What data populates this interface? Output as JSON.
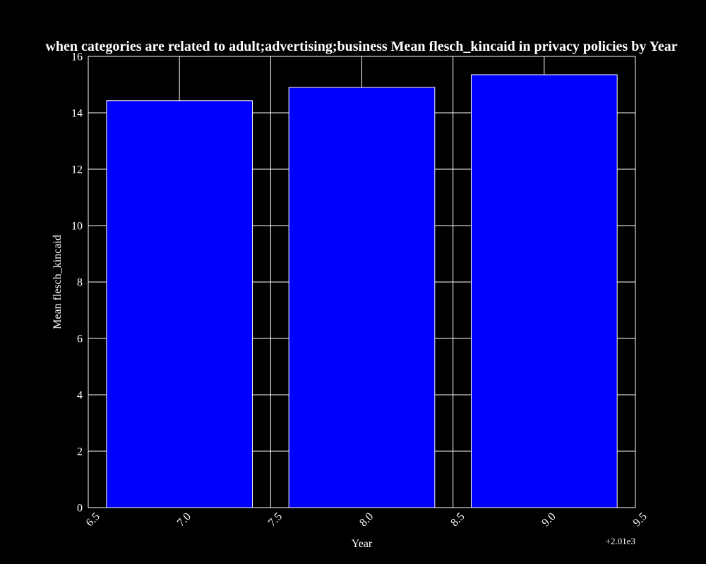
{
  "chart_data": {
    "type": "bar",
    "title": "when categories are related to adult;advertising;business Mean flesch_kincaid in privacy policies by Year",
    "xlabel": "Year",
    "ylabel": "Mean flesch_kincaid",
    "x": [
      7.0,
      8.0,
      9.0
    ],
    "values": [
      14.43,
      14.9,
      15.35
    ],
    "bar_width": 0.8,
    "xlim": [
      6.5,
      9.5
    ],
    "ylim": [
      0,
      16
    ],
    "xticks": [
      "6.5",
      "7.0",
      "7.5",
      "8.0",
      "8.5",
      "9.0",
      "9.5"
    ],
    "yticks": [
      "0",
      "2",
      "4",
      "6",
      "8",
      "10",
      "12",
      "14",
      "16"
    ],
    "x_offset_label": "+2.01e3",
    "grid": true,
    "legend": "none",
    "colors": {
      "background": "#000000",
      "bar_fill": "#0000ff",
      "bar_edge": "#ffffff",
      "grid": "#ffffff",
      "text": "#ffffff"
    }
  }
}
